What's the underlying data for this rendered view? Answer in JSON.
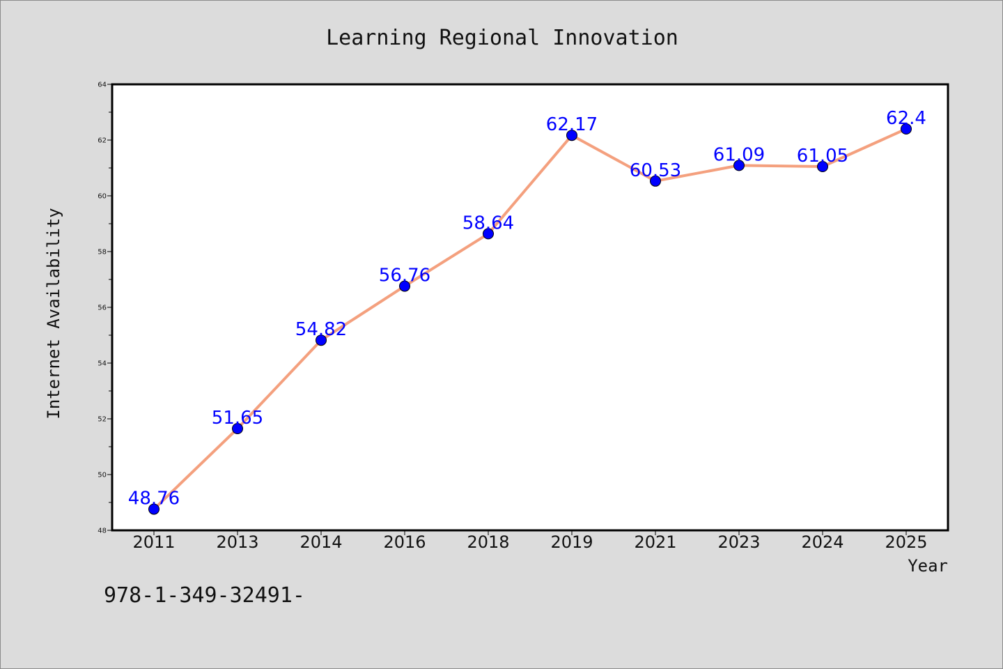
{
  "chart_data": {
    "type": "line",
    "title": "Learning Regional Innovation",
    "xlabel": "Year",
    "ylabel": "Internet Availability",
    "categories": [
      "2011",
      "2013",
      "2014",
      "2016",
      "2018",
      "2019",
      "2021",
      "2023",
      "2024",
      "2025"
    ],
    "series": [
      {
        "values": [
          48.76,
          51.65,
          54.82,
          56.76,
          58.64,
          62.17,
          60.53,
          61.09,
          61.05,
          62.4
        ],
        "labels": [
          "48.76",
          "51.65",
          "54.82",
          "56.76",
          "58.64",
          "62.17",
          "60.53",
          "61.09",
          "61.05",
          "62.4"
        ],
        "line_color": "#f4a07e",
        "marker_color": "#0000ff"
      }
    ],
    "ylim": [
      48,
      64
    ],
    "yticks": [
      "48",
      "50",
      "52",
      "54",
      "56",
      "58",
      "60",
      "62",
      "64"
    ],
    "grid": false,
    "legend": "none"
  },
  "footer": {
    "isbn": "978-1-349-32491-"
  }
}
